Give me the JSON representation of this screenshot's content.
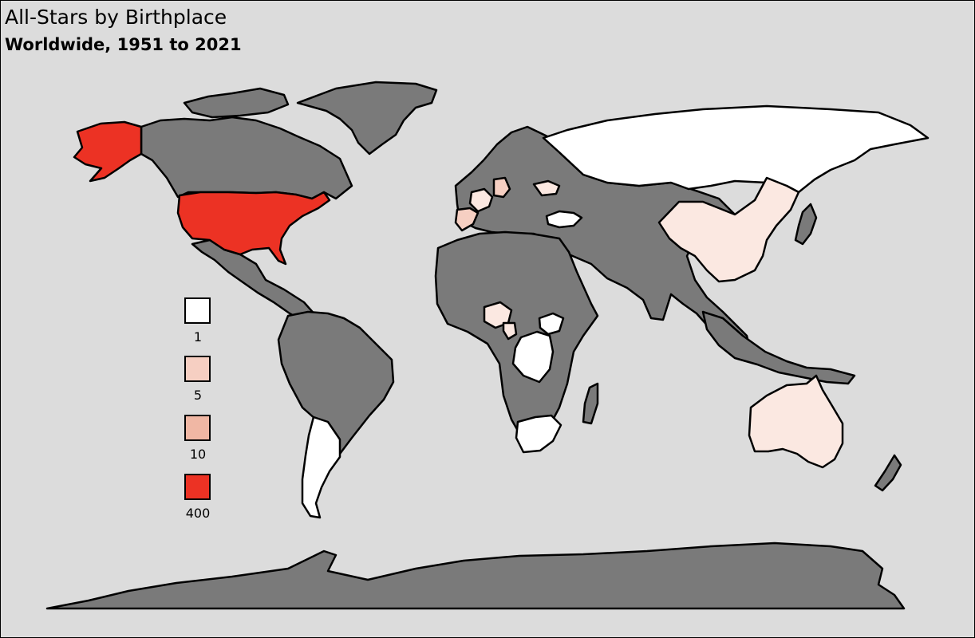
{
  "title": "All-Stars by Birthplace",
  "subtitle": "Worldwide, 1951 to 2021",
  "colors": {
    "background": "#dcdcdc",
    "no_data": "#7a7a7a",
    "outline": "#000000",
    "scale": [
      "#ffffff",
      "#f6cfc2",
      "#f0b7a4",
      "#ec3224"
    ]
  },
  "legend": {
    "items": [
      {
        "label": "1",
        "color": "#ffffff"
      },
      {
        "label": "5",
        "color": "#f6cfc2"
      },
      {
        "label": "10",
        "color": "#f0b7a4"
      },
      {
        "label": "400",
        "color": "#ec3224"
      }
    ]
  },
  "map_data": {
    "type": "choropleth",
    "regions": [
      {
        "id": "usa",
        "fill": "#ec3224"
      },
      {
        "id": "alaska",
        "fill": "#ec3224"
      },
      {
        "id": "china",
        "fill": "#fbe8e1"
      },
      {
        "id": "australia",
        "fill": "#fbe8e1"
      },
      {
        "id": "russia",
        "fill": "#ffffff"
      },
      {
        "id": "argentina",
        "fill": "#ffffff"
      },
      {
        "id": "south-africa",
        "fill": "#ffffff"
      },
      {
        "id": "dr-congo",
        "fill": "#ffffff"
      },
      {
        "id": "ethiopia",
        "fill": "#ffffff"
      },
      {
        "id": "turkey",
        "fill": "#ffffff"
      },
      {
        "id": "spain",
        "fill": "#f6cfc2"
      },
      {
        "id": "france",
        "fill": "#fbe8e1"
      },
      {
        "id": "germany",
        "fill": "#f6cfc2"
      },
      {
        "id": "nigeria",
        "fill": "#fbe8e1"
      },
      {
        "id": "cameroon",
        "fill": "#fbe8e1"
      },
      {
        "id": "ukraine",
        "fill": "#fbe8e1"
      }
    ]
  }
}
